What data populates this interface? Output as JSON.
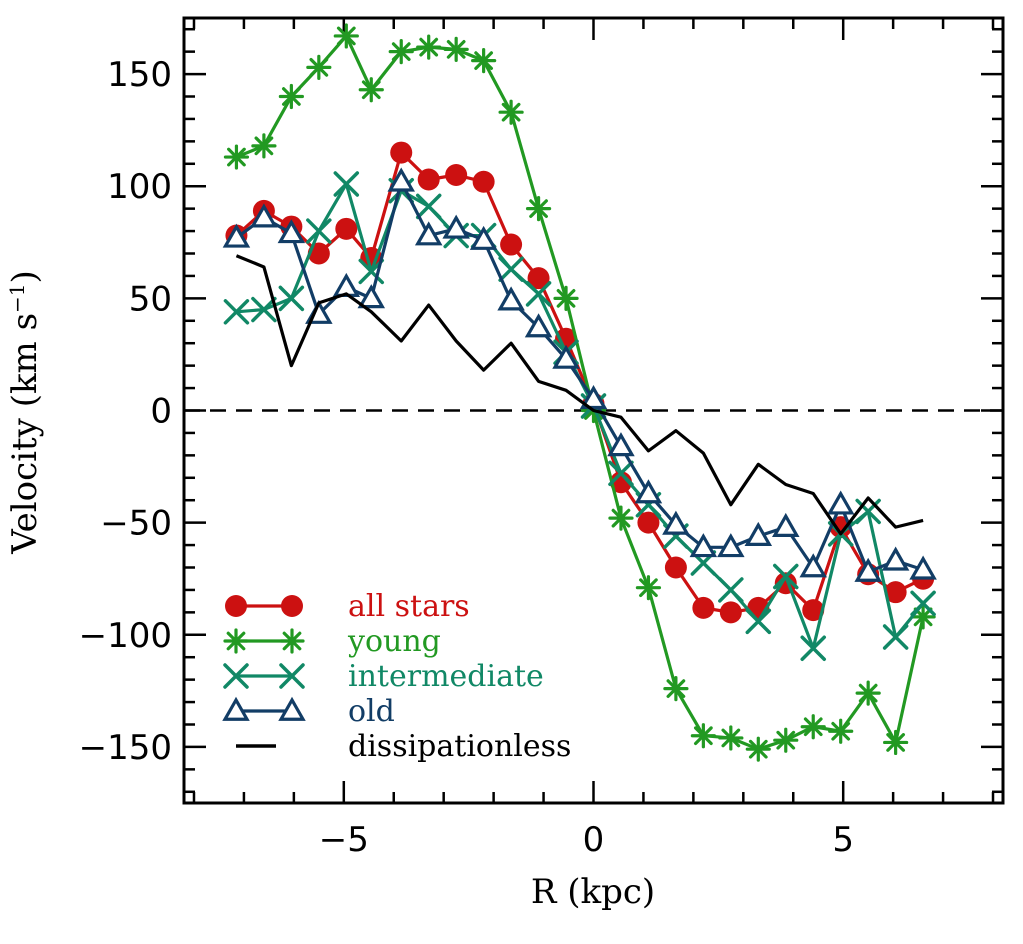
{
  "chart_data": {
    "type": "line",
    "xlabel": "R (kpc)",
    "ylabel": {
      "main": "Velocity (km s",
      "superscript": "−1",
      "close": ")"
    },
    "xlim": [
      -8.2,
      8.2
    ],
    "ylim": [
      -175,
      175
    ],
    "xticks": [
      -5,
      0,
      5
    ],
    "xtick_labels": [
      "−5",
      "0",
      "5"
    ],
    "yticks": [
      -150,
      -100,
      -50,
      0,
      50,
      100,
      150
    ],
    "ytick_labels": [
      "−150",
      "−100",
      "−50",
      "0",
      "50",
      "100",
      "150"
    ],
    "reference_line": {
      "y": 0,
      "style": "dashed"
    },
    "legend_position": "bottom-left",
    "series": [
      {
        "name": "all stars",
        "color": "#cc1111",
        "marker": "filled-circle",
        "x": [
          -7.15,
          -6.6,
          -6.05,
          -5.5,
          -4.95,
          -4.45,
          -3.85,
          -3.3,
          -2.75,
          -2.2,
          -1.65,
          -1.1,
          -0.55,
          0.0,
          0.55,
          1.1,
          1.65,
          2.2,
          2.75,
          3.3,
          3.85,
          4.4,
          4.95,
          5.5,
          6.05,
          6.6
        ],
        "y": [
          78,
          89,
          82,
          70,
          81,
          68,
          115,
          103,
          105,
          102,
          74,
          59,
          32,
          3,
          -32,
          -50,
          -70,
          -88,
          -90,
          -88,
          -77,
          -89,
          -52,
          -73,
          -81,
          -75
        ]
      },
      {
        "name": "young",
        "color": "#229922",
        "marker": "asterisk",
        "x": [
          -7.15,
          -6.6,
          -6.05,
          -5.5,
          -4.95,
          -4.45,
          -3.85,
          -3.3,
          -2.75,
          -2.2,
          -1.65,
          -1.1,
          -0.55,
          0.0,
          0.55,
          1.1,
          1.65,
          2.2,
          2.75,
          3.3,
          3.85,
          4.4,
          4.95,
          5.5,
          6.05,
          6.6
        ],
        "y": [
          113,
          118,
          140,
          153,
          167,
          143,
          160,
          162,
          161,
          156,
          133,
          90,
          50,
          0,
          -48,
          -79,
          -124,
          -145,
          -146,
          -151,
          -147,
          -141,
          -143,
          -126,
          -148,
          -92
        ]
      },
      {
        "name": "intermediate",
        "color": "#118866",
        "marker": "cross",
        "x": [
          -7.15,
          -6.6,
          -6.05,
          -5.5,
          -4.95,
          -4.45,
          -3.85,
          -3.3,
          -2.75,
          -2.2,
          -1.65,
          -1.1,
          -0.55,
          0.0,
          0.55,
          1.1,
          1.65,
          2.2,
          2.75,
          3.3,
          3.85,
          4.4,
          4.95,
          5.5,
          6.05,
          6.6
        ],
        "y": [
          44,
          45,
          50,
          80,
          101,
          62,
          98,
          91,
          78,
          78,
          63,
          52,
          26,
          2,
          -28,
          -42,
          -56,
          -68,
          -80,
          -94,
          -74,
          -106,
          -55,
          -45,
          -101,
          -86
        ]
      },
      {
        "name": "old",
        "color": "#123d66",
        "marker": "open-triangle",
        "x": [
          -7.15,
          -6.6,
          -6.05,
          -5.5,
          -4.95,
          -4.45,
          -3.85,
          -3.3,
          -2.75,
          -2.2,
          -1.65,
          -1.1,
          -0.55,
          0.0,
          0.55,
          1.1,
          1.65,
          2.2,
          2.75,
          3.3,
          3.85,
          4.4,
          4.95,
          5.5,
          6.05,
          6.6
        ],
        "y": [
          77,
          86,
          79,
          43,
          55,
          50,
          102,
          78,
          81,
          76,
          49,
          37,
          23,
          5,
          -16,
          -37,
          -51,
          -61,
          -61,
          -56,
          -52,
          -70,
          -42,
          -72,
          -67,
          -71
        ]
      },
      {
        "name": "dissipationless",
        "color": "#000000",
        "marker": "none",
        "x": [
          -7.15,
          -6.6,
          -6.05,
          -5.5,
          -4.95,
          -4.45,
          -3.85,
          -3.3,
          -2.75,
          -2.2,
          -1.65,
          -1.1,
          -0.55,
          0.0,
          0.55,
          1.1,
          1.65,
          2.2,
          2.75,
          3.3,
          3.85,
          4.4,
          4.95,
          5.5,
          6.05,
          6.6
        ],
        "y": [
          69,
          64,
          20,
          48,
          52,
          44,
          31,
          47,
          31,
          18,
          30,
          13,
          9,
          0,
          -3,
          -18,
          -9,
          -19,
          -42,
          -24,
          -33,
          -37,
          -55,
          -39,
          -52,
          -49
        ]
      }
    ]
  }
}
